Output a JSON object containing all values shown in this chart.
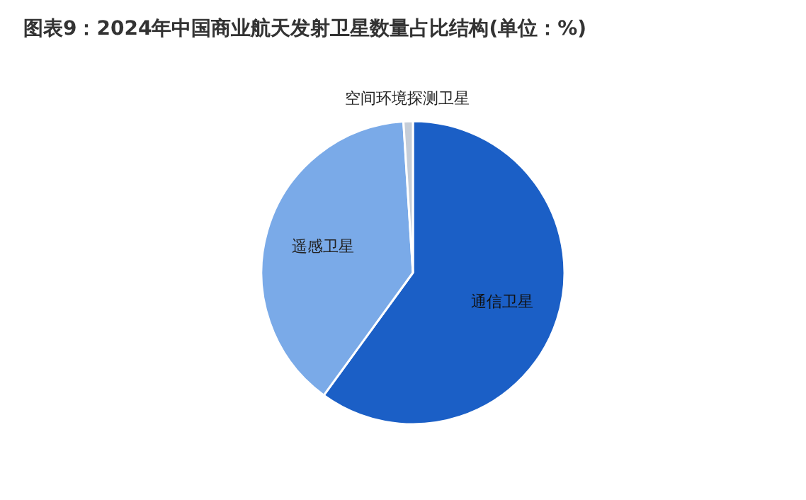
{
  "chart_data": {
    "type": "pie",
    "title": "图表9：2024年中国商业航天发射卫星数量占比结构(单位：%)",
    "categories": [
      "通信卫星",
      "遥感卫星",
      "空间环境探测卫星"
    ],
    "values": [
      60,
      39,
      1
    ],
    "colors": [
      "#1b5fc6",
      "#7aaae8",
      "#c5cdd8"
    ]
  }
}
